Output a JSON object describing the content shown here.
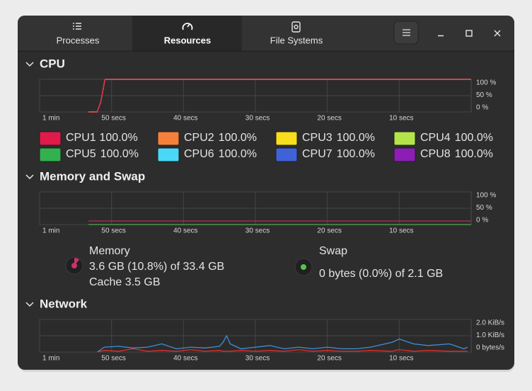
{
  "tabs": [
    "Processes",
    "Resources",
    "File Systems"
  ],
  "cpu": {
    "title": "CPU",
    "graph": {
      "x": [
        53.2,
        52,
        51.5,
        51,
        50.9,
        0
      ],
      "xlim": [
        60,
        0
      ],
      "xticks": [
        {
          "value": 60,
          "label": "1 min"
        },
        {
          "value": 50,
          "label": "50 secs"
        },
        {
          "value": 40,
          "label": "40 secs"
        },
        {
          "value": 30,
          "label": "30 secs"
        },
        {
          "value": 20,
          "label": "20 secs"
        },
        {
          "value": 10,
          "label": "10 secs"
        }
      ],
      "ylim": [
        0,
        100
      ],
      "yticks": [
        {
          "value": 100,
          "label": "100 %"
        },
        {
          "value": 50,
          "label": "50 %"
        },
        {
          "value": 0,
          "label": "0 %"
        }
      ],
      "series": [
        {
          "name": "CPU1",
          "color": "#e01b4c",
          "values": [
            0,
            0,
            30,
            90,
            100,
            100
          ],
          "value_label": "100.0%"
        },
        {
          "name": "CPU2",
          "color": "#f6803a",
          "values": [
            0,
            0,
            30,
            90,
            100,
            100
          ],
          "value_label": "100.0%"
        },
        {
          "name": "CPU3",
          "color": "#f8de1c",
          "values": [
            0,
            0,
            30,
            90,
            100,
            100
          ],
          "value_label": "100.0%"
        },
        {
          "name": "CPU4",
          "color": "#b5e44a",
          "values": [
            0,
            0,
            30,
            90,
            100,
            100
          ],
          "value_label": "100.0%"
        },
        {
          "name": "CPU5",
          "color": "#33b14e",
          "values": [
            0,
            0,
            30,
            90,
            100,
            100
          ],
          "value_label": "100.0%"
        },
        {
          "name": "CPU6",
          "color": "#4ad8f7",
          "values": [
            0,
            0,
            30,
            90,
            100,
            100
          ],
          "value_label": "100.0%"
        },
        {
          "name": "CPU7",
          "color": "#3f62d8",
          "values": [
            0,
            0,
            30,
            90,
            100,
            100
          ],
          "value_label": "100.0%"
        },
        {
          "name": "CPU8",
          "color": "#8c1db5",
          "values": [
            0,
            0,
            30,
            90,
            100,
            100
          ],
          "value_label": "100.0%"
        }
      ]
    }
  },
  "memory": {
    "title": "Memory and Swap",
    "graph": {
      "x": [
        53.2,
        0
      ],
      "xlim": [
        60,
        0
      ],
      "xticks": [
        {
          "value": 60,
          "label": "1 min"
        },
        {
          "value": 50,
          "label": "50 secs"
        },
        {
          "value": 40,
          "label": "40 secs"
        },
        {
          "value": 30,
          "label": "30 secs"
        },
        {
          "value": 20,
          "label": "20 secs"
        },
        {
          "value": 10,
          "label": "10 secs"
        }
      ],
      "ylim": [
        0,
        100
      ],
      "yticks": [
        {
          "value": 100,
          "label": "100 %"
        },
        {
          "value": 50,
          "label": "50 %"
        },
        {
          "value": 0,
          "label": "0 %"
        }
      ],
      "series": [
        {
          "color": "#4fa84c",
          "values": [
            0,
            0
          ]
        },
        {
          "color": "#b8305a",
          "values": [
            10.8,
            10.8
          ]
        }
      ]
    },
    "memory": {
      "label": "Memory",
      "usage": "3.6 GB (10.8%) of 33.4 GB",
      "cache": "Cache 3.5 GB"
    },
    "swap": {
      "label": "Swap",
      "usage": "0 bytes (0.0%) of 2.1 GB"
    }
  },
  "network": {
    "title": "Network",
    "graph": {
      "x": [
        52,
        51,
        49,
        47,
        45,
        43,
        41,
        39,
        37,
        35,
        34.5,
        34,
        33.5,
        32,
        30,
        28,
        26,
        24,
        22,
        20,
        18,
        16,
        14,
        11,
        10,
        8,
        6,
        3,
        1,
        0.5
      ],
      "xlim": [
        60,
        0
      ],
      "xticks": [
        {
          "value": 60,
          "label": "1 min"
        },
        {
          "value": 50,
          "label": "50 secs"
        },
        {
          "value": 40,
          "label": "40 secs"
        },
        {
          "value": 30,
          "label": "30 secs"
        },
        {
          "value": 20,
          "label": "20 secs"
        },
        {
          "value": 10,
          "label": "10 secs"
        }
      ],
      "ylim": [
        0,
        2
      ],
      "yticks": [
        {
          "value": 2,
          "label": "2.0 KiB/s"
        },
        {
          "value": 1,
          "label": "1.0 KiB/s"
        },
        {
          "value": 0,
          "label": "0 bytes/s"
        }
      ],
      "series": [
        {
          "color": "#e0302c",
          "values": [
            0,
            0.1,
            0.05,
            0.2,
            0.05,
            0.1,
            0.05,
            0.15,
            0.05,
            0.1,
            0.05,
            0.05,
            0.05,
            0.1,
            0.05,
            0.1,
            0.05,
            0.15,
            0.05,
            0.1,
            0.05,
            0.05,
            0.1,
            0.05,
            0.15,
            0.05,
            0.1,
            0.05,
            0.05,
            0.05
          ]
        },
        {
          "color": "#3d8fd8",
          "values": [
            0,
            0.3,
            0.35,
            0.25,
            0.3,
            0.5,
            0.2,
            0.3,
            0.25,
            0.35,
            0.6,
            1.0,
            0.5,
            0.2,
            0.3,
            0.4,
            0.2,
            0.3,
            0.2,
            0.3,
            0.2,
            0.2,
            0.3,
            0.6,
            0.8,
            0.5,
            0.4,
            0.5,
            0.2,
            0.3
          ]
        }
      ]
    }
  }
}
